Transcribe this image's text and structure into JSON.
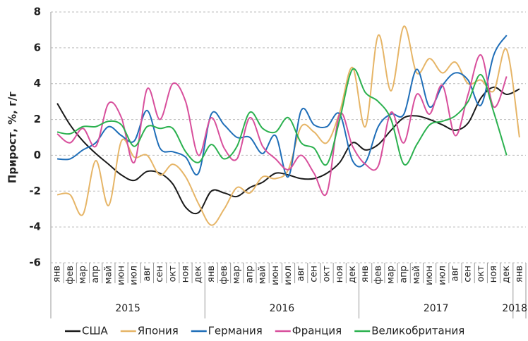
{
  "chart_data": {
    "type": "line",
    "y_label": "Прирост, %, г/г",
    "categories": [
      "янв",
      "фев",
      "мар",
      "апр",
      "май",
      "июн",
      "июл",
      "авг",
      "сен",
      "окт",
      "ноя",
      "дек",
      "янв",
      "фев",
      "мар",
      "апр",
      "май",
      "июн",
      "июл",
      "авг",
      "сен",
      "окт",
      "ноя",
      "дек",
      "янв",
      "фев",
      "мар",
      "апр",
      "май",
      "июн",
      "июл",
      "авг",
      "сен",
      "окт",
      "ноя",
      "дек",
      "янв"
    ],
    "x_groups": [
      "2015",
      "2016",
      "2017",
      "2018"
    ],
    "ylim": [
      -6,
      8
    ],
    "yticks": [
      -6,
      -4,
      -2,
      0,
      2,
      4,
      6,
      8
    ],
    "grid": true,
    "legend": "bottom",
    "series": [
      {
        "name": "США",
        "color": "#1a1a1a",
        "values": [
          2.9,
          1.7,
          0.8,
          0.1,
          -0.5,
          -1.1,
          -1.4,
          -0.9,
          -1.0,
          -1.6,
          -2.9,
          -3.2,
          -2.0,
          -2.1,
          -2.3,
          -1.8,
          -1.5,
          -1.0,
          -1.1,
          -1.3,
          -1.3,
          -1.0,
          -0.4,
          0.7,
          0.3,
          0.6,
          1.4,
          2.1,
          2.2,
          2.0,
          1.7,
          1.4,
          1.8,
          3.2,
          3.8,
          3.4,
          3.7
        ]
      },
      {
        "name": "Япония",
        "color": "#e6b567",
        "values": [
          -2.2,
          -2.2,
          -3.3,
          -0.3,
          -2.8,
          0.8,
          -0.1,
          0.0,
          -1.1,
          -0.5,
          -1.2,
          -2.7,
          -3.9,
          -3.0,
          -1.8,
          -2.1,
          -1.2,
          -1.3,
          -0.8,
          1.6,
          1.3,
          0.7,
          2.4,
          4.9,
          1.6,
          6.7,
          3.6,
          7.2,
          4.6,
          5.4,
          4.6,
          5.2,
          4.0,
          4.2,
          3.6,
          5.9,
          1.0
        ]
      },
      {
        "name": "Германия",
        "color": "#1f6eb8",
        "values": [
          -0.2,
          -0.2,
          0.3,
          0.7,
          1.6,
          1.1,
          0.8,
          2.5,
          0.4,
          0.2,
          -0.1,
          -1.0,
          2.3,
          1.7,
          1.0,
          1.0,
          0.1,
          1.1,
          -1.2,
          2.5,
          1.7,
          1.6,
          2.3,
          -0.3,
          -0.4,
          1.6,
          2.3,
          2.3,
          4.8,
          2.7,
          3.9,
          4.6,
          4.2,
          2.8,
          5.6,
          6.7,
          null
        ]
      },
      {
        "name": "Франция",
        "color": "#d84f9c",
        "values": [
          1.2,
          0.7,
          1.5,
          0.5,
          2.9,
          2.1,
          -0.4,
          3.7,
          2.0,
          4.0,
          3.0,
          0.0,
          2.1,
          0.4,
          -0.2,
          2.1,
          0.5,
          -0.2,
          -0.8,
          0.0,
          -1.0,
          -2.1,
          2.3,
          0.5,
          -0.5,
          -0.6,
          2.4,
          0.7,
          3.4,
          2.3,
          3.9,
          1.1,
          3.4,
          5.6,
          2.7,
          4.4,
          null
        ]
      },
      {
        "name": "Великобритания",
        "color": "#2bb14f",
        "values": [
          1.3,
          1.2,
          1.6,
          1.6,
          1.9,
          1.7,
          0.5,
          1.6,
          1.5,
          1.5,
          0.2,
          -0.4,
          0.6,
          -0.2,
          0.5,
          2.4,
          1.5,
          1.3,
          2.1,
          0.7,
          0.4,
          -0.5,
          2.0,
          4.8,
          3.5,
          3.0,
          2.0,
          -0.5,
          0.6,
          1.7,
          1.9,
          2.2,
          3.0,
          4.5,
          2.4,
          0.0,
          null
        ]
      }
    ]
  }
}
